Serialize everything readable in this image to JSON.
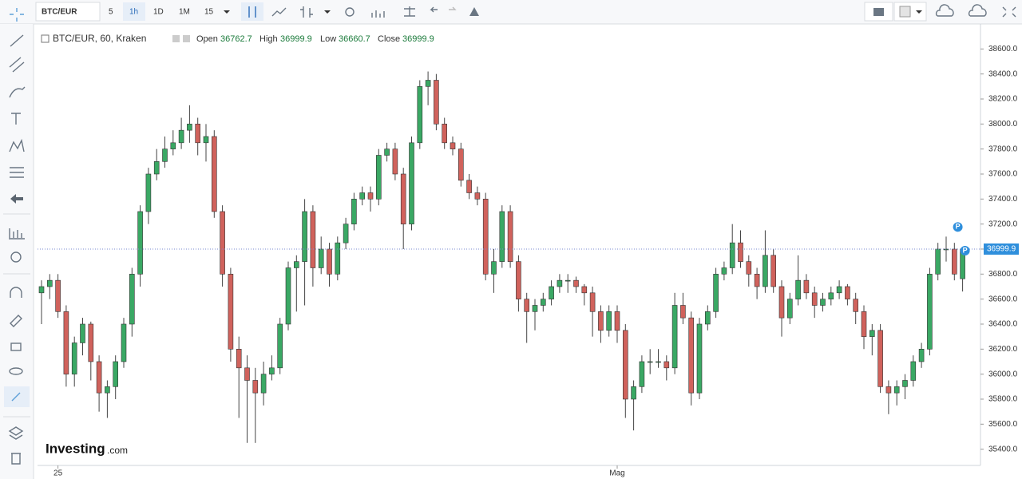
{
  "toolbar": {
    "symbol": "BTC/EUR",
    "intervals": [
      "5",
      "1h",
      "1D",
      "1M",
      "15"
    ]
  },
  "legend": {
    "title": "BTC/EUR, 60, Kraken",
    "open": "Open",
    "high": "High",
    "low": "Low",
    "close": "Close"
  },
  "badges": [
    "P",
    "P"
  ],
  "logo": {
    "brand": "Investing",
    "suffix": ".com"
  },
  "chart_data": {
    "type": "candlestick",
    "up_color": "#3aa864",
    "down_color": "#d0625c",
    "grid": false,
    "ylim": [
      35270,
      38800
    ],
    "yticks": [
      {
        "value": 35400,
        "label": "35400.0"
      },
      {
        "value": 35600,
        "label": "35600.0"
      },
      {
        "value": 35800,
        "label": "35800.0"
      },
      {
        "value": 36000,
        "label": "36000.0"
      },
      {
        "value": 36200,
        "label": "36200.0"
      },
      {
        "value": 36400,
        "label": "36400.0"
      },
      {
        "value": 36600,
        "label": "36600.0"
      },
      {
        "value": 36800,
        "label": "36800.0"
      },
      {
        "value": 37000,
        "label": "37000.0"
      },
      {
        "value": 37200,
        "label": "37200.0"
      },
      {
        "value": 37400,
        "label": "37400.0"
      },
      {
        "value": 37600,
        "label": "37600.0"
      },
      {
        "value": 37800,
        "label": "37800.0"
      },
      {
        "value": 38000,
        "label": "38000.0"
      },
      {
        "value": 38200,
        "label": "38200.0"
      },
      {
        "value": 38400,
        "label": "38400.0"
      },
      {
        "value": 38600,
        "label": "38600.0"
      }
    ],
    "categories": [
      null,
      null,
      "25",
      null,
      null,
      null,
      null,
      null,
      null,
      null,
      null,
      null,
      null,
      null,
      null,
      null,
      null,
      null,
      null,
      null,
      null,
      null,
      null,
      null,
      null,
      null,
      null,
      null,
      null,
      null,
      null,
      null,
      null,
      null,
      null,
      null,
      null,
      null,
      null,
      null,
      null,
      null,
      null,
      null,
      null,
      null,
      null,
      null,
      null,
      null,
      null,
      null,
      null,
      null,
      null,
      null,
      null,
      null,
      null,
      null,
      null,
      null,
      null,
      null,
      null,
      null,
      null,
      null,
      null,
      null,
      "Mag",
      null,
      null,
      null,
      null,
      null,
      null,
      null,
      null,
      null,
      null,
      null,
      null,
      null,
      null,
      null,
      null,
      null,
      null,
      null,
      null,
      null,
      null,
      null,
      null,
      null,
      null,
      null,
      null,
      null,
      null,
      null,
      null,
      null,
      null,
      null,
      null,
      null,
      null,
      null,
      null,
      null,
      null
    ],
    "values": [
      [
        36650,
        36750,
        36400,
        36700
      ],
      [
        36700,
        36800,
        36600,
        36750
      ],
      [
        36750,
        36800,
        36450,
        36500
      ],
      [
        36500,
        36550,
        35900,
        36000
      ],
      [
        36000,
        36300,
        35900,
        36250
      ],
      [
        36250,
        36450,
        36150,
        36400
      ],
      [
        36400,
        36420,
        35950,
        36100
      ],
      [
        36100,
        36150,
        35700,
        35850
      ],
      [
        35850,
        35950,
        35650,
        35900
      ],
      [
        35900,
        36150,
        35800,
        36100
      ],
      [
        36100,
        36450,
        36050,
        36400
      ],
      [
        36400,
        36850,
        36300,
        36800
      ],
      [
        36800,
        37350,
        36700,
        37300
      ],
      [
        37300,
        37650,
        37200,
        37600
      ],
      [
        37600,
        37800,
        37550,
        37700
      ],
      [
        37700,
        37900,
        37650,
        37800
      ],
      [
        37800,
        37950,
        37750,
        37850
      ],
      [
        37850,
        38050,
        37800,
        37950
      ],
      [
        37950,
        38150,
        37850,
        38000
      ],
      [
        38000,
        38050,
        37750,
        37850
      ],
      [
        37850,
        38000,
        37700,
        37900
      ],
      [
        37900,
        37950,
        37250,
        37300
      ],
      [
        37300,
        37350,
        36700,
        36800
      ],
      [
        36800,
        36850,
        36100,
        36200
      ],
      [
        36200,
        36300,
        35650,
        36050
      ],
      [
        36050,
        36150,
        35450,
        35950
      ],
      [
        35950,
        36050,
        35450,
        35850
      ],
      [
        35850,
        36100,
        35750,
        36000
      ],
      [
        36000,
        36150,
        35950,
        36050
      ],
      [
        36050,
        36450,
        36000,
        36400
      ],
      [
        36400,
        36900,
        36350,
        36850
      ],
      [
        36850,
        36950,
        36500,
        36900
      ],
      [
        36900,
        37400,
        36550,
        37300
      ],
      [
        37300,
        37350,
        36700,
        36850
      ],
      [
        36850,
        37100,
        36800,
        37000
      ],
      [
        37000,
        37050,
        36700,
        36800
      ],
      [
        36800,
        37100,
        36750,
        37050
      ],
      [
        37050,
        37250,
        37000,
        37200
      ],
      [
        37200,
        37450,
        37150,
        37400
      ],
      [
        37400,
        37500,
        37350,
        37450
      ],
      [
        37450,
        37500,
        37300,
        37400
      ],
      [
        37400,
        37800,
        37350,
        37750
      ],
      [
        37750,
        37850,
        37700,
        37800
      ],
      [
        37800,
        37850,
        37550,
        37600
      ],
      [
        37600,
        37650,
        37000,
        37200
      ],
      [
        37200,
        37900,
        37150,
        37850
      ],
      [
        37850,
        38350,
        37800,
        38300
      ],
      [
        38300,
        38420,
        38150,
        38350
      ],
      [
        38350,
        38400,
        37950,
        38000
      ],
      [
        38000,
        38050,
        37800,
        37850
      ],
      [
        37850,
        37900,
        37750,
        37800
      ],
      [
        37800,
        37850,
        37500,
        37550
      ],
      [
        37550,
        37600,
        37400,
        37450
      ],
      [
        37450,
        37500,
        37350,
        37400
      ],
      [
        37400,
        37450,
        36750,
        36800
      ],
      [
        36800,
        37000,
        36650,
        36900
      ],
      [
        36900,
        37350,
        36850,
        37300
      ],
      [
        37300,
        37350,
        36850,
        36900
      ],
      [
        36900,
        36950,
        36500,
        36600
      ],
      [
        36600,
        36650,
        36250,
        36500
      ],
      [
        36500,
        36600,
        36350,
        36550
      ],
      [
        36550,
        36650,
        36500,
        36600
      ],
      [
        36600,
        36750,
        36550,
        36700
      ],
      [
        36700,
        36800,
        36650,
        36750
      ],
      [
        36750,
        36800,
        36650,
        36750
      ],
      [
        36750,
        36780,
        36650,
        36700
      ],
      [
        36700,
        36720,
        36550,
        36650
      ],
      [
        36650,
        36700,
        36300,
        36500
      ],
      [
        36500,
        36550,
        36250,
        36350
      ],
      [
        36350,
        36550,
        36300,
        36500
      ],
      [
        36500,
        36550,
        36250,
        36350
      ],
      [
        36350,
        36400,
        35650,
        35800
      ],
      [
        35800,
        35950,
        35550,
        35900
      ],
      [
        35900,
        36150,
        35850,
        36100
      ],
      [
        36100,
        36200,
        36000,
        36100
      ],
      [
        36100,
        36200,
        36050,
        36100
      ],
      [
        36100,
        36150,
        35950,
        36050
      ],
      [
        36050,
        36650,
        36000,
        36550
      ],
      [
        36550,
        36650,
        36400,
        36450
      ],
      [
        36450,
        36500,
        35750,
        35850
      ],
      [
        35850,
        36450,
        35800,
        36400
      ],
      [
        36400,
        36550,
        36350,
        36500
      ],
      [
        36500,
        36850,
        36450,
        36800
      ],
      [
        36800,
        36900,
        36750,
        36850
      ],
      [
        36850,
        37200,
        36800,
        37050
      ],
      [
        37050,
        37150,
        36850,
        36900
      ],
      [
        36900,
        36950,
        36700,
        36800
      ],
      [
        36800,
        36850,
        36600,
        36700
      ],
      [
        36700,
        37150,
        36650,
        36950
      ],
      [
        36950,
        37000,
        36650,
        36700
      ],
      [
        36700,
        36750,
        36300,
        36450
      ],
      [
        36450,
        36650,
        36400,
        36600
      ],
      [
        36600,
        36950,
        36550,
        36750
      ],
      [
        36750,
        36800,
        36600,
        36650
      ],
      [
        36650,
        36700,
        36450,
        36550
      ],
      [
        36550,
        36650,
        36500,
        36600
      ],
      [
        36600,
        36700,
        36550,
        36650
      ],
      [
        36650,
        36750,
        36600,
        36700
      ],
      [
        36700,
        36720,
        36550,
        36600
      ],
      [
        36600,
        36650,
        36400,
        36500
      ],
      [
        36500,
        36550,
        36200,
        36300
      ],
      [
        36300,
        36400,
        36150,
        36350
      ],
      [
        36350,
        36400,
        35850,
        35900
      ],
      [
        35900,
        35950,
        35680,
        35850
      ],
      [
        35850,
        35950,
        35750,
        35900
      ],
      [
        35900,
        36000,
        35800,
        35950
      ],
      [
        35950,
        36150,
        35900,
        36100
      ],
      [
        36100,
        36250,
        36050,
        36200
      ],
      [
        36200,
        36850,
        36150,
        36800
      ],
      [
        36800,
        37050,
        36750,
        37000
      ],
      [
        37000,
        37100,
        36900,
        37000
      ],
      [
        37000,
        37050,
        36750,
        36800
      ],
      [
        36762.7,
        36999.9,
        36660.7,
        36999.9
      ]
    ]
  }
}
